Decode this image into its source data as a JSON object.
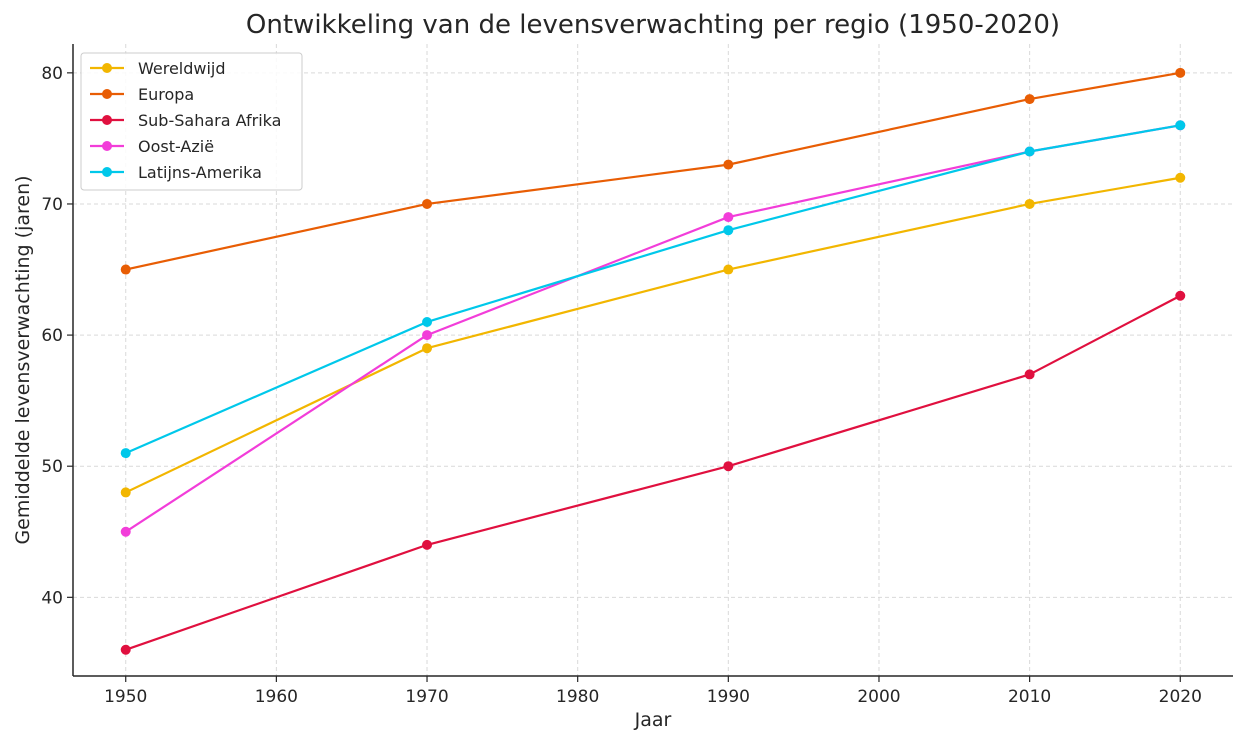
{
  "chart_data": {
    "type": "line",
    "title": "Ontwikkeling van de levensverwachting per regio (1950-2020)",
    "xlabel": "Jaar",
    "ylabel": "Gemiddelde levensverwachting (jaren)",
    "x": [
      1950,
      1970,
      1990,
      2010,
      2020
    ],
    "xlim": [
      1946.5,
      2023.5
    ],
    "ylim": [
      34,
      82.2
    ],
    "xticks": [
      1950,
      1960,
      1970,
      1980,
      1990,
      2000,
      2010,
      2020
    ],
    "yticks": [
      40,
      50,
      60,
      70,
      80
    ],
    "grid": true,
    "legend_position": "top-left",
    "series": [
      {
        "name": "Wereldwijd",
        "color": "#f2b600",
        "values": [
          48,
          59,
          65,
          70,
          72
        ]
      },
      {
        "name": "Europa",
        "color": "#e85d04",
        "values": [
          65,
          70,
          73,
          78,
          80
        ]
      },
      {
        "name": "Sub-Sahara Afrika",
        "color": "#e0103f",
        "values": [
          36,
          44,
          50,
          57,
          63
        ]
      },
      {
        "name": "Oost-Azië",
        "color": "#f23dd9",
        "values": [
          45,
          60,
          69,
          74,
          76
        ]
      },
      {
        "name": "Latijns-Amerika",
        "color": "#00c8ea",
        "values": [
          51,
          61,
          68,
          74,
          76
        ]
      }
    ]
  }
}
